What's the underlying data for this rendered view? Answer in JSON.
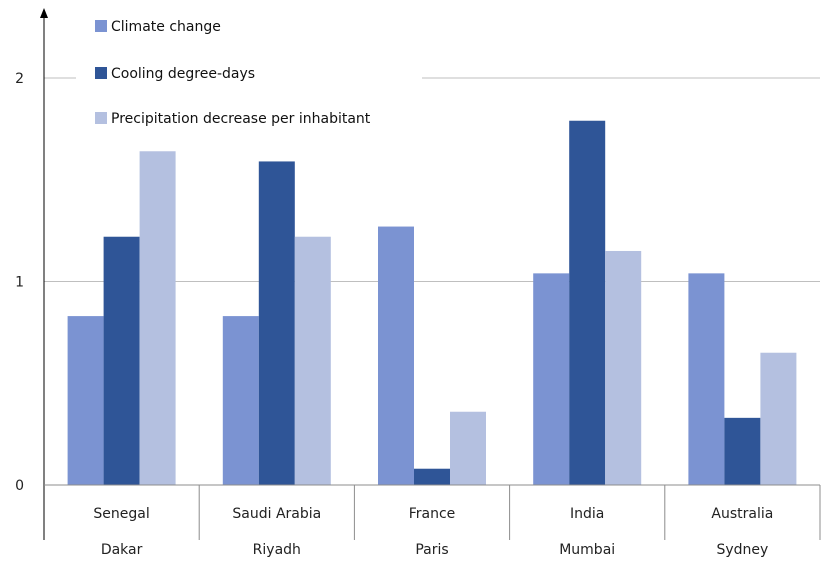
{
  "chart_data": {
    "type": "bar",
    "categories": [
      {
        "country": "Senegal",
        "city": "Dakar"
      },
      {
        "country": "Saudi Arabia",
        "city": "Riyadh"
      },
      {
        "country": "France",
        "city": "Paris"
      },
      {
        "country": "India",
        "city": "Mumbai"
      },
      {
        "country": "Australia",
        "city": "Sydney"
      }
    ],
    "series": [
      {
        "name": "Climate change",
        "color": "#7b93d2",
        "values": [
          0.83,
          0.83,
          1.27,
          1.04,
          1.04
        ]
      },
      {
        "name": "Cooling degree-days",
        "color": "#2f5597",
        "values": [
          1.22,
          1.59,
          0.08,
          1.79,
          0.33
        ]
      },
      {
        "name": "Precipitation decrease per inhabitant",
        "color": "#b4c0e0",
        "values": [
          1.64,
          1.22,
          0.36,
          1.15,
          0.65
        ]
      }
    ],
    "y_ticks": [
      "0",
      "1",
      "2"
    ],
    "ylim": [
      0,
      2
    ],
    "grid": true,
    "legend_position": "top-left",
    "title": "",
    "xlabel": "",
    "ylabel": ""
  }
}
